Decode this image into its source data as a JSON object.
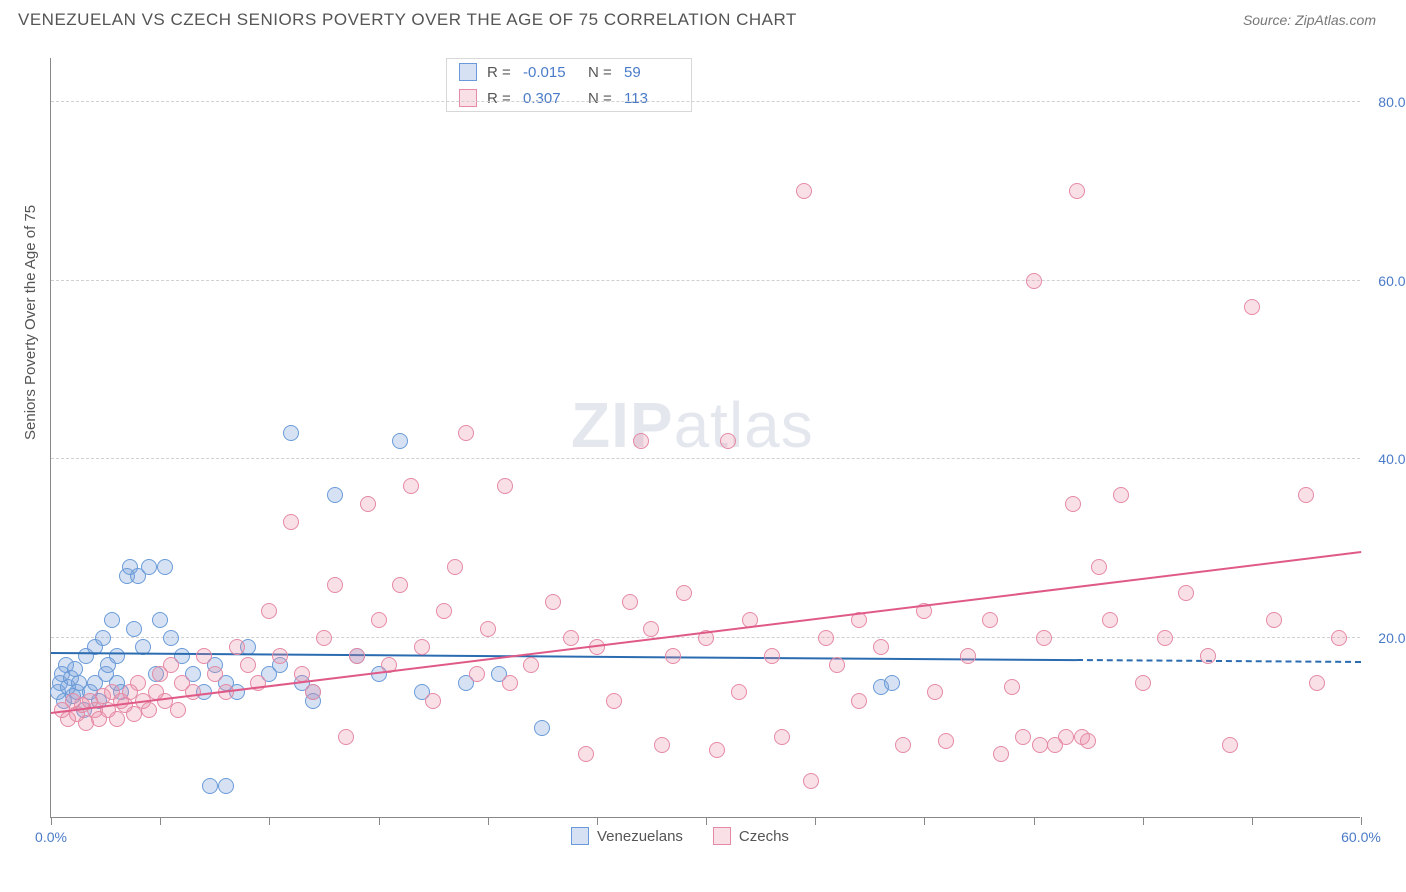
{
  "title": "VENEZUELAN VS CZECH SENIORS POVERTY OVER THE AGE OF 75 CORRELATION CHART",
  "source": "Source: ZipAtlas.com",
  "ylabel": "Seniors Poverty Over the Age of 75",
  "watermark_a": "ZIP",
  "watermark_b": "atlas",
  "chart": {
    "type": "scatter",
    "xlim": [
      0,
      60
    ],
    "ylim": [
      0,
      85
    ],
    "xticks": [
      0,
      5,
      10,
      15,
      20,
      25,
      30,
      35,
      40,
      45,
      50,
      55,
      60
    ],
    "xtick_labels": {
      "0": "0.0%",
      "60": "60.0%"
    },
    "yticks": [
      20,
      40,
      60,
      80
    ],
    "ytick_labels": [
      "20.0%",
      "40.0%",
      "60.0%",
      "80.0%"
    ],
    "grid_color": "#d8d8d8",
    "background_color": "#ffffff",
    "axis_color": "#888888",
    "tick_label_color": "#4a7bc8",
    "marker_radius": 8,
    "marker_border_width": 1.5,
    "series": [
      {
        "name": "Venezuelans",
        "fill": "rgba(120,160,220,0.30)",
        "stroke": "#6a9bd8",
        "trend_color": "#2b6cb0",
        "trend": {
          "x0": 0,
          "y0": 18.2,
          "x1": 47,
          "y1": 17.4,
          "dash_after_x": 47,
          "x_end": 60
        },
        "points": [
          [
            0.3,
            14
          ],
          [
            0.4,
            15
          ],
          [
            0.5,
            16
          ],
          [
            0.6,
            13
          ],
          [
            0.7,
            17
          ],
          [
            0.8,
            14.5
          ],
          [
            0.9,
            15.5
          ],
          [
            1.0,
            13.5
          ],
          [
            1.1,
            16.5
          ],
          [
            1.2,
            14
          ],
          [
            1.3,
            15
          ],
          [
            1.5,
            12
          ],
          [
            1.6,
            18
          ],
          [
            1.8,
            14
          ],
          [
            2.0,
            19
          ],
          [
            2.0,
            15
          ],
          [
            2.2,
            13
          ],
          [
            2.4,
            20
          ],
          [
            2.5,
            16
          ],
          [
            2.6,
            17
          ],
          [
            2.8,
            22
          ],
          [
            3.0,
            18
          ],
          [
            3.0,
            15
          ],
          [
            3.2,
            14
          ],
          [
            3.5,
            27
          ],
          [
            3.6,
            28
          ],
          [
            3.8,
            21
          ],
          [
            4.0,
            27
          ],
          [
            4.2,
            19
          ],
          [
            4.5,
            28
          ],
          [
            4.8,
            16
          ],
          [
            5.0,
            22
          ],
          [
            5.2,
            28
          ],
          [
            5.5,
            20
          ],
          [
            6.0,
            18
          ],
          [
            6.5,
            16
          ],
          [
            7.0,
            14
          ],
          [
            7.3,
            3.5
          ],
          [
            7.5,
            17
          ],
          [
            8.0,
            15
          ],
          [
            8.0,
            3.5
          ],
          [
            8.5,
            14
          ],
          [
            9.0,
            19
          ],
          [
            10.0,
            16
          ],
          [
            10.5,
            17
          ],
          [
            11.0,
            43
          ],
          [
            11.5,
            15
          ],
          [
            12.0,
            14
          ],
          [
            12.0,
            13
          ],
          [
            13.0,
            36
          ],
          [
            14.0,
            18
          ],
          [
            15.0,
            16
          ],
          [
            16.0,
            42
          ],
          [
            17.0,
            14
          ],
          [
            19.0,
            15
          ],
          [
            20.5,
            16
          ],
          [
            22.5,
            10
          ],
          [
            38.0,
            14.5
          ],
          [
            38.5,
            15
          ]
        ]
      },
      {
        "name": "Czechs",
        "fill": "rgba(235,140,165,0.28)",
        "stroke": "#e58aa5",
        "trend_color": "#e05a87",
        "trend": {
          "x0": 0,
          "y0": 11.5,
          "x1": 60,
          "y1": 29.5
        },
        "points": [
          [
            0.5,
            12
          ],
          [
            0.8,
            11
          ],
          [
            1.0,
            13
          ],
          [
            1.2,
            11.5
          ],
          [
            1.4,
            12.5
          ],
          [
            1.6,
            10.5
          ],
          [
            1.8,
            13
          ],
          [
            2.0,
            12
          ],
          [
            2.2,
            11
          ],
          [
            2.4,
            13.5
          ],
          [
            2.6,
            12
          ],
          [
            2.8,
            14
          ],
          [
            3.0,
            11
          ],
          [
            3.2,
            13
          ],
          [
            3.4,
            12.5
          ],
          [
            3.6,
            14
          ],
          [
            3.8,
            11.5
          ],
          [
            4.0,
            15
          ],
          [
            4.2,
            13
          ],
          [
            4.5,
            12
          ],
          [
            4.8,
            14
          ],
          [
            5.0,
            16
          ],
          [
            5.2,
            13
          ],
          [
            5.5,
            17
          ],
          [
            5.8,
            12
          ],
          [
            6.0,
            15
          ],
          [
            6.5,
            14
          ],
          [
            7.0,
            18
          ],
          [
            7.5,
            16
          ],
          [
            8.0,
            14
          ],
          [
            8.5,
            19
          ],
          [
            9.0,
            17
          ],
          [
            9.5,
            15
          ],
          [
            10.0,
            23
          ],
          [
            10.5,
            18
          ],
          [
            11.0,
            33
          ],
          [
            11.5,
            16
          ],
          [
            12.0,
            14
          ],
          [
            12.5,
            20
          ],
          [
            13.0,
            26
          ],
          [
            13.5,
            9
          ],
          [
            14.0,
            18
          ],
          [
            14.5,
            35
          ],
          [
            15.0,
            22
          ],
          [
            15.5,
            17
          ],
          [
            16.0,
            26
          ],
          [
            16.5,
            37
          ],
          [
            17.0,
            19
          ],
          [
            17.5,
            13
          ],
          [
            18.0,
            23
          ],
          [
            18.5,
            28
          ],
          [
            19.0,
            43
          ],
          [
            19.5,
            16
          ],
          [
            20.0,
            21
          ],
          [
            20.8,
            37
          ],
          [
            21.0,
            15
          ],
          [
            22.0,
            17
          ],
          [
            23.0,
            24
          ],
          [
            23.8,
            20
          ],
          [
            24.5,
            7
          ],
          [
            25.0,
            19
          ],
          [
            25.8,
            13
          ],
          [
            26.5,
            24
          ],
          [
            27.0,
            42
          ],
          [
            27.5,
            21
          ],
          [
            28.0,
            8
          ],
          [
            28.5,
            18
          ],
          [
            29.0,
            25
          ],
          [
            30.0,
            20
          ],
          [
            30.5,
            7.5
          ],
          [
            31.0,
            42
          ],
          [
            31.5,
            14
          ],
          [
            32.0,
            22
          ],
          [
            33.0,
            18
          ],
          [
            33.5,
            9
          ],
          [
            34.5,
            70
          ],
          [
            34.8,
            4
          ],
          [
            35.5,
            20
          ],
          [
            36.0,
            17
          ],
          [
            37.0,
            22
          ],
          [
            37.0,
            13
          ],
          [
            38.0,
            19
          ],
          [
            39.0,
            8
          ],
          [
            40.0,
            23
          ],
          [
            40.5,
            14
          ],
          [
            41.0,
            8.5
          ],
          [
            42.0,
            18
          ],
          [
            43.0,
            22
          ],
          [
            43.5,
            7
          ],
          [
            44.0,
            14.5
          ],
          [
            44.5,
            9
          ],
          [
            45.0,
            60
          ],
          [
            45.5,
            20
          ],
          [
            46.0,
            8
          ],
          [
            46.8,
            35
          ],
          [
            47.0,
            70
          ],
          [
            47.2,
            9
          ],
          [
            47.5,
            8.5
          ],
          [
            48.0,
            28
          ],
          [
            48.5,
            22
          ],
          [
            49.0,
            36
          ],
          [
            50.0,
            15
          ],
          [
            51.0,
            20
          ],
          [
            52.0,
            25
          ],
          [
            53.0,
            18
          ],
          [
            54.0,
            8
          ],
          [
            55.0,
            57
          ],
          [
            56.0,
            22
          ],
          [
            57.5,
            36
          ],
          [
            58.0,
            15
          ],
          [
            59.0,
            20
          ],
          [
            45.3,
            8
          ],
          [
            46.5,
            9
          ]
        ]
      }
    ]
  },
  "stats": [
    {
      "swatch_fill": "rgba(120,160,220,0.30)",
      "swatch_stroke": "#6a9bd8",
      "r_label": "R =",
      "r": "-0.015",
      "n_label": "N =",
      "n": "59"
    },
    {
      "swatch_fill": "rgba(235,140,165,0.28)",
      "swatch_stroke": "#e58aa5",
      "r_label": "R =",
      "r": "0.307",
      "n_label": "N =",
      "n": "113"
    }
  ],
  "legend": [
    {
      "label": "Venezuelans",
      "fill": "rgba(120,160,220,0.30)",
      "stroke": "#6a9bd8"
    },
    {
      "label": "Czechs",
      "fill": "rgba(235,140,165,0.28)",
      "stroke": "#e58aa5"
    }
  ]
}
